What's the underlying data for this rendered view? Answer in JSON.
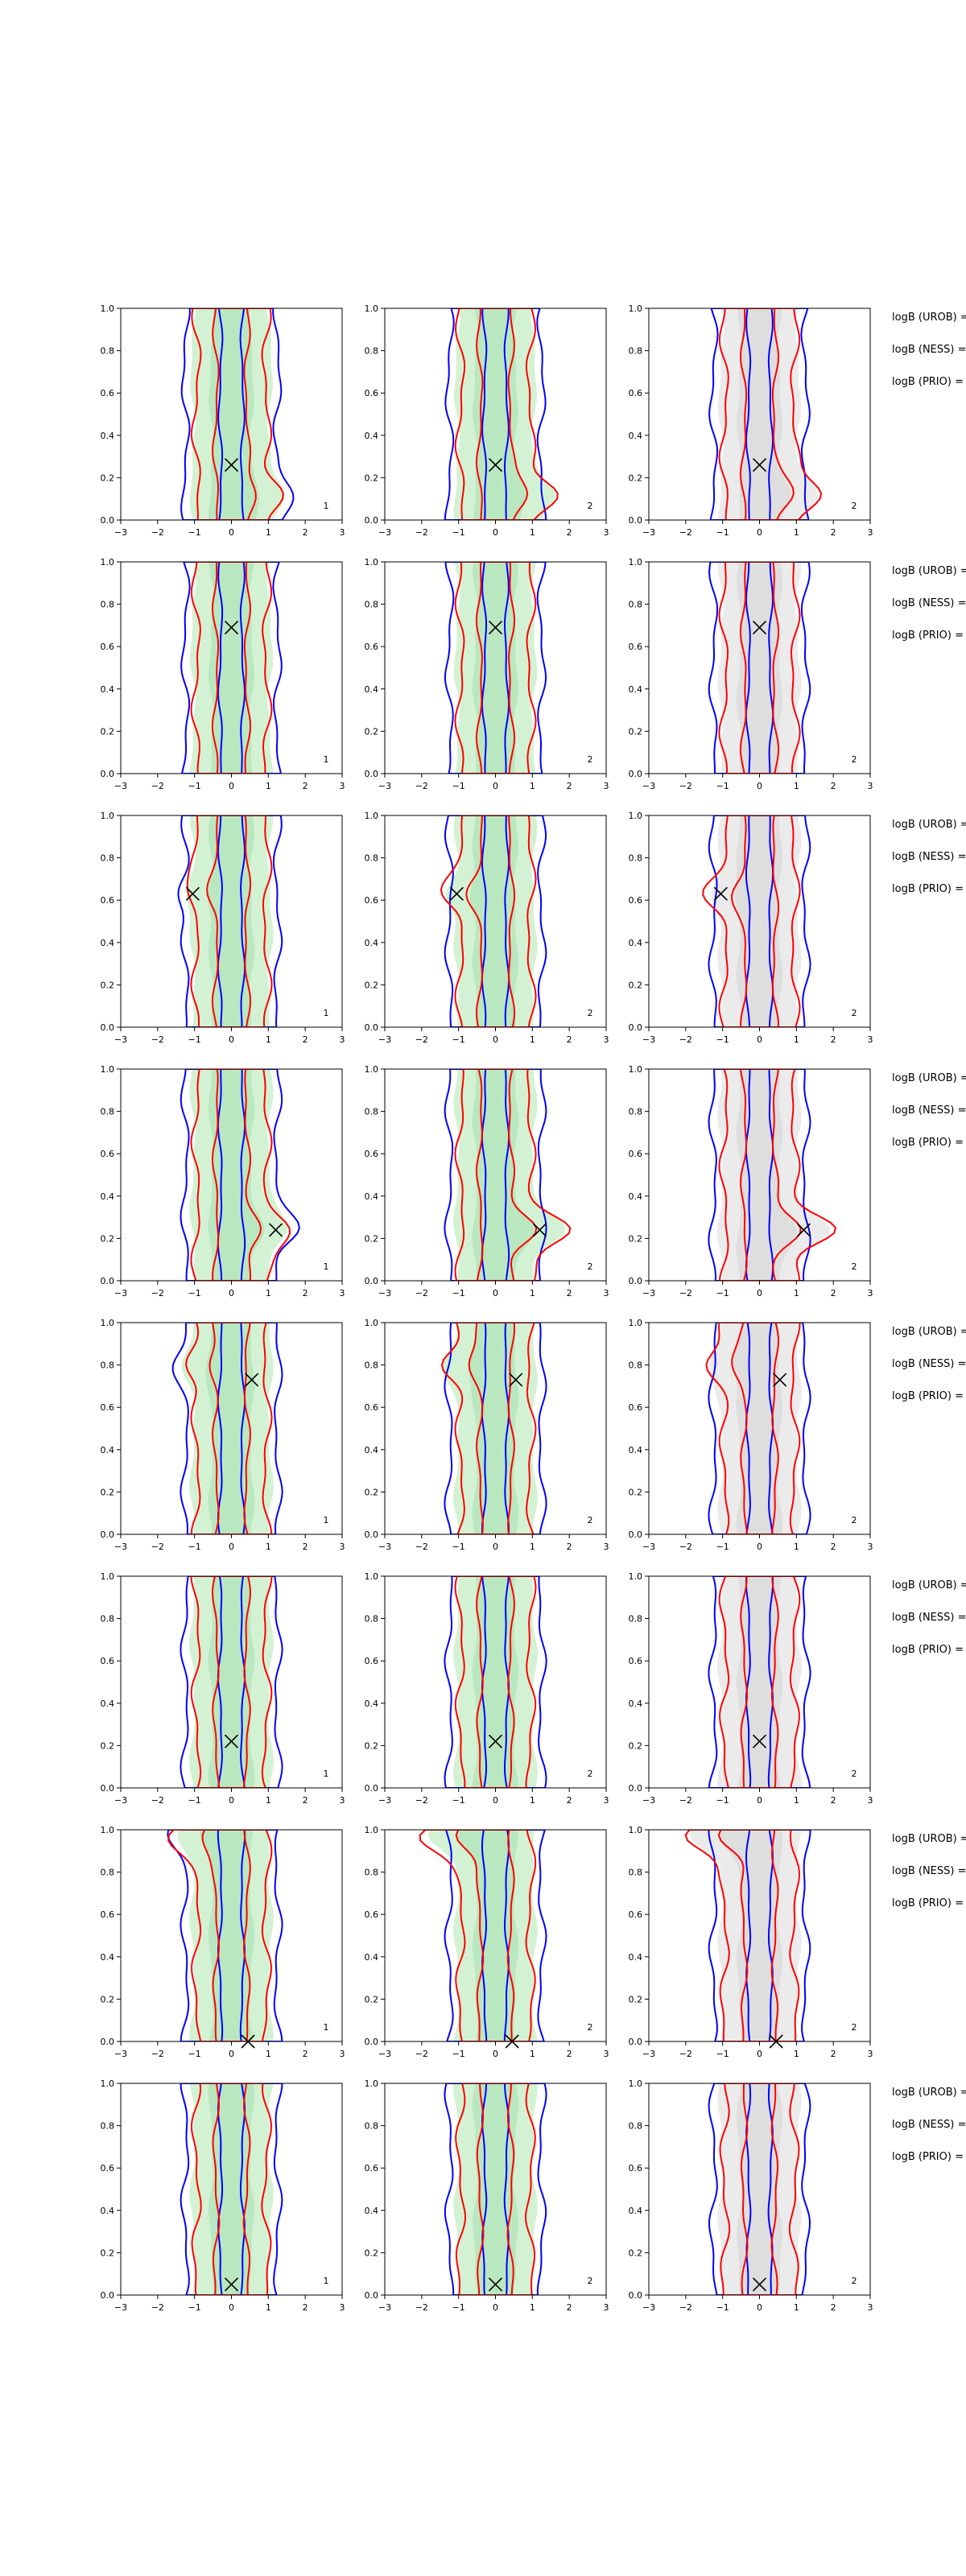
{
  "chart_data": {
    "type": "contour",
    "xlim": [
      -3,
      3
    ],
    "ylim": [
      0,
      1
    ],
    "x_ticks": [
      -3,
      -2,
      -1,
      0,
      1,
      2,
      3
    ],
    "y_ticks": [
      "0.0",
      "0.2",
      "0.4",
      "0.6",
      "0.8",
      "1.0"
    ],
    "colors": {
      "blue_contour": "#0000ff",
      "red_contour": "#ff0000",
      "green_fill": "#c8efc8",
      "grey_fill": "#e6e6e6",
      "marker": "#000000"
    },
    "column_corner_labels": [
      "1",
      "2",
      "2"
    ],
    "side_labels": [
      "logB (UROB) =",
      "logB (NESS) =",
      "logB (PRIO) ="
    ],
    "rows": [
      {
        "marker": [
          0.0,
          0.26
        ],
        "bulge": [
          0.9,
          0.12
        ]
      },
      {
        "marker": [
          0.0,
          0.69
        ],
        "bulge": [
          0.0,
          0.0
        ]
      },
      {
        "marker": [
          -1.05,
          0.63
        ],
        "bulge": [
          -0.5,
          0.63
        ]
      },
      {
        "marker": [
          1.2,
          0.24
        ],
        "bulge": [
          1.3,
          0.24
        ]
      },
      {
        "marker": [
          0.55,
          0.73
        ],
        "bulge": [
          -0.6,
          0.8
        ]
      },
      {
        "marker": [
          0.0,
          0.22
        ],
        "bulge": [
          0.0,
          0.0
        ]
      },
      {
        "marker": [
          0.45,
          0.0
        ],
        "bulge": [
          -1.3,
          0.97
        ]
      },
      {
        "marker": [
          0.0,
          0.05
        ],
        "bulge": [
          0.0,
          0.0
        ]
      }
    ]
  }
}
